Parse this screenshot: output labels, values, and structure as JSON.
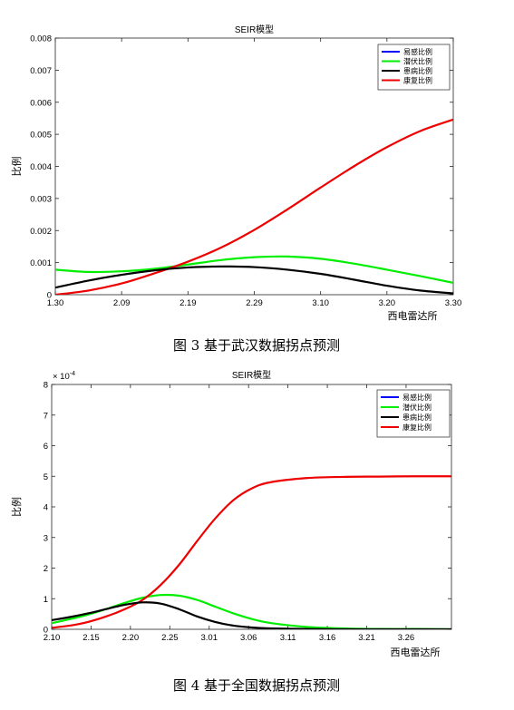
{
  "chart_data": [
    {
      "type": "line",
      "title": "SEIR模型",
      "xlabel": "西电雷达所",
      "ylabel": "比例",
      "x_tick_labels": [
        "1.30",
        "2.09",
        "2.19",
        "2.29",
        "3.10",
        "3.20",
        "3.30"
      ],
      "y_tick_labels": [
        "0",
        "0.001",
        "0.002",
        "0.003",
        "0.004",
        "0.005",
        "0.006",
        "0.007",
        "0.008"
      ],
      "ylim": [
        0,
        0.008
      ],
      "xlim": [
        0,
        6
      ],
      "legend_position": "top-right",
      "grid": false,
      "caption": "图 3  基于武汉数据拐点预测",
      "series": [
        {
          "name": "易感比例",
          "color": "#0000ff",
          "x": [],
          "y": []
        },
        {
          "name": "潜伏比例",
          "color": "#00ee00",
          "x": [
            0,
            0.5,
            1,
            1.5,
            2,
            2.5,
            3,
            3.5,
            4,
            4.5,
            5,
            5.5,
            6
          ],
          "y": [
            0.00078,
            0.00071,
            0.00073,
            0.00081,
            0.00094,
            0.00108,
            0.00117,
            0.00119,
            0.00112,
            0.00097,
            0.00078,
            0.00058,
            0.00037
          ]
        },
        {
          "name": "患病比例",
          "color": "#000000",
          "x": [
            0,
            0.5,
            1,
            1.5,
            2,
            2.5,
            3,
            3.5,
            4,
            4.5,
            5,
            5.5,
            6
          ],
          "y": [
            0.00022,
            0.00044,
            0.00062,
            0.00076,
            0.00085,
            0.00088,
            0.00086,
            0.00078,
            0.00065,
            0.00047,
            0.00028,
            0.00013,
            4e-05
          ]
        },
        {
          "name": "康复比例",
          "color": "#ee0000",
          "x": [
            0,
            0.5,
            1,
            1.5,
            2,
            2.5,
            3,
            3.5,
            4,
            4.5,
            5,
            5.5,
            6
          ],
          "y": [
            0.0,
            0.00013,
            0.00035,
            0.00067,
            0.00103,
            0.00147,
            0.00202,
            0.00266,
            0.00334,
            0.004,
            0.0046,
            0.0051,
            0.00546
          ]
        }
      ]
    },
    {
      "type": "line",
      "title": "SEIR模型",
      "xlabel": "西电雷达所",
      "ylabel": "比例",
      "y_multiplier": "× 10^-4",
      "x_tick_labels": [
        "2.10",
        "2.15",
        "2.20",
        "2.25",
        "3.01",
        "3.06",
        "3.11",
        "3.16",
        "3.21",
        "3.26"
      ],
      "y_tick_labels": [
        "0",
        "1",
        "2",
        "3",
        "4",
        "5",
        "6",
        "7",
        "8"
      ],
      "ylim": [
        0,
        8
      ],
      "xlim": [
        0,
        11
      ],
      "legend_position": "top-right",
      "grid": false,
      "caption": "图 4  基于全国数据拐点预测",
      "series": [
        {
          "name": "易感比例",
          "color": "#0000ff",
          "x": [],
          "y": []
        },
        {
          "name": "潜伏比例",
          "color": "#00ee00",
          "x": [
            0,
            0.5,
            1,
            1.5,
            2,
            2.5,
            3,
            3.5,
            4,
            4.5,
            5,
            5.5,
            6,
            7,
            8,
            9,
            10,
            11
          ],
          "y": [
            0.2,
            0.33,
            0.48,
            0.66,
            0.86,
            1.03,
            1.12,
            1.1,
            0.96,
            0.74,
            0.52,
            0.34,
            0.21,
            0.08,
            0.03,
            0.01,
            0.01,
            0.0
          ]
        },
        {
          "name": "患病比例",
          "color": "#000000",
          "x": [
            0,
            0.5,
            1,
            1.5,
            2,
            2.5,
            3,
            3.5,
            4,
            4.5,
            5,
            5.5,
            6,
            7,
            8,
            9,
            10,
            11
          ],
          "y": [
            0.3,
            0.4,
            0.52,
            0.66,
            0.8,
            0.88,
            0.84,
            0.66,
            0.42,
            0.24,
            0.12,
            0.06,
            0.03,
            0.01,
            0.0,
            0.0,
            0.0,
            0.0
          ]
        },
        {
          "name": "康复比例",
          "color": "#ee0000",
          "x": [
            0,
            0.5,
            1,
            1.5,
            2,
            2.5,
            3,
            3.5,
            4,
            4.5,
            5,
            5.5,
            6,
            7,
            8,
            9,
            10,
            11
          ],
          "y": [
            0.05,
            0.12,
            0.24,
            0.42,
            0.65,
            0.96,
            1.45,
            2.1,
            2.88,
            3.62,
            4.22,
            4.6,
            4.8,
            4.94,
            4.98,
            4.99,
            5.0,
            5.0
          ]
        }
      ]
    }
  ]
}
